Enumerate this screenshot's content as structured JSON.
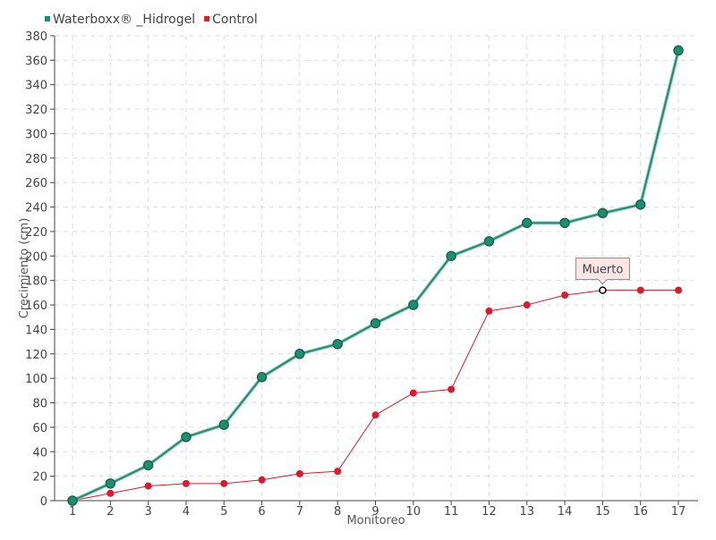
{
  "chart_data": {
    "type": "line",
    "title": "",
    "xlabel": "Monitoreo",
    "ylabel": "Crecimiento (cm)",
    "categories": [
      "1",
      "2",
      "3",
      "4",
      "5",
      "6",
      "7",
      "8",
      "9",
      "10",
      "11",
      "12",
      "13",
      "14",
      "15",
      "16",
      "17"
    ],
    "ylim": [
      0,
      380
    ],
    "ytick_step": 20,
    "grid": true,
    "legend_position": "top-left",
    "series": [
      {
        "name": "Waterboxx® _Hidrogel",
        "color": "#1e8f6e",
        "values": [
          0,
          14,
          29,
          52,
          62,
          101,
          120,
          128,
          145,
          160,
          200,
          212,
          227,
          227,
          235,
          242,
          368
        ]
      },
      {
        "name": "Control",
        "color": "#e0182d",
        "values": [
          0,
          6,
          12,
          14,
          14,
          17,
          22,
          24,
          70,
          88,
          91,
          155,
          160,
          168,
          172,
          172,
          172
        ]
      }
    ],
    "annotations": [
      {
        "text": "Muerto",
        "series": 1,
        "category": "15"
      }
    ]
  }
}
